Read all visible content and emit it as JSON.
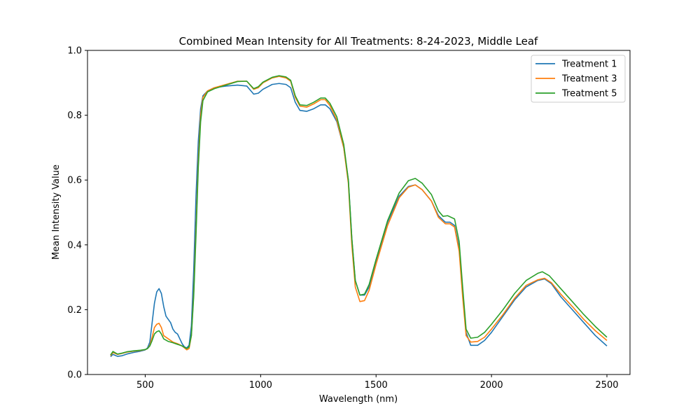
{
  "chart_data": {
    "type": "line",
    "title": "Combined Mean Intensity for All Treatments: 8-24-2023, Middle Leaf",
    "xlabel": "Wavelength (nm)",
    "ylabel": "Mean Intensity Value",
    "xlim": [
      250,
      2600
    ],
    "ylim": [
      0.0,
      1.0
    ],
    "xticks": [
      500,
      1000,
      1500,
      2000,
      2500
    ],
    "xtick_labels": [
      "500",
      "1000",
      "1500",
      "2000",
      "2500"
    ],
    "yticks": [
      0.0,
      0.2,
      0.4,
      0.6,
      0.8,
      1.0
    ],
    "ytick_labels": [
      "0.0",
      "0.2",
      "0.4",
      "0.6",
      "0.8",
      "1.0"
    ],
    "grid": false,
    "legend_position": "top-right",
    "series": [
      {
        "name": "Treatment 1",
        "color": "#1f77b4",
        "points": [
          [
            350,
            0.055
          ],
          [
            360,
            0.062
          ],
          [
            380,
            0.056
          ],
          [
            400,
            0.058
          ],
          [
            420,
            0.063
          ],
          [
            450,
            0.068
          ],
          [
            480,
            0.072
          ],
          [
            500,
            0.076
          ],
          [
            510,
            0.082
          ],
          [
            520,
            0.1
          ],
          [
            530,
            0.16
          ],
          [
            540,
            0.22
          ],
          [
            550,
            0.255
          ],
          [
            560,
            0.265
          ],
          [
            570,
            0.25
          ],
          [
            580,
            0.21
          ],
          [
            590,
            0.18
          ],
          [
            600,
            0.17
          ],
          [
            610,
            0.16
          ],
          [
            620,
            0.14
          ],
          [
            630,
            0.13
          ],
          [
            640,
            0.125
          ],
          [
            650,
            0.11
          ],
          [
            660,
            0.095
          ],
          [
            670,
            0.085
          ],
          [
            680,
            0.082
          ],
          [
            690,
            0.09
          ],
          [
            700,
            0.15
          ],
          [
            710,
            0.32
          ],
          [
            720,
            0.55
          ],
          [
            730,
            0.72
          ],
          [
            740,
            0.82
          ],
          [
            750,
            0.86
          ],
          [
            770,
            0.875
          ],
          [
            800,
            0.885
          ],
          [
            850,
            0.89
          ],
          [
            900,
            0.893
          ],
          [
            940,
            0.89
          ],
          [
            970,
            0.865
          ],
          [
            990,
            0.868
          ],
          [
            1010,
            0.88
          ],
          [
            1050,
            0.895
          ],
          [
            1080,
            0.898
          ],
          [
            1110,
            0.895
          ],
          [
            1130,
            0.885
          ],
          [
            1150,
            0.84
          ],
          [
            1170,
            0.815
          ],
          [
            1200,
            0.812
          ],
          [
            1230,
            0.82
          ],
          [
            1260,
            0.832
          ],
          [
            1280,
            0.832
          ],
          [
            1300,
            0.82
          ],
          [
            1330,
            0.78
          ],
          [
            1360,
            0.7
          ],
          [
            1380,
            0.6
          ],
          [
            1395,
            0.42
          ],
          [
            1410,
            0.29
          ],
          [
            1430,
            0.245
          ],
          [
            1450,
            0.245
          ],
          [
            1470,
            0.27
          ],
          [
            1500,
            0.35
          ],
          [
            1550,
            0.47
          ],
          [
            1600,
            0.55
          ],
          [
            1640,
            0.58
          ],
          [
            1670,
            0.585
          ],
          [
            1700,
            0.57
          ],
          [
            1740,
            0.535
          ],
          [
            1770,
            0.49
          ],
          [
            1800,
            0.47
          ],
          [
            1820,
            0.47
          ],
          [
            1840,
            0.46
          ],
          [
            1860,
            0.39
          ],
          [
            1875,
            0.25
          ],
          [
            1890,
            0.13
          ],
          [
            1910,
            0.09
          ],
          [
            1940,
            0.09
          ],
          [
            1970,
            0.105
          ],
          [
            2000,
            0.13
          ],
          [
            2050,
            0.18
          ],
          [
            2100,
            0.23
          ],
          [
            2150,
            0.27
          ],
          [
            2200,
            0.29
          ],
          [
            2230,
            0.295
          ],
          [
            2260,
            0.28
          ],
          [
            2300,
            0.24
          ],
          [
            2350,
            0.2
          ],
          [
            2400,
            0.16
          ],
          [
            2450,
            0.12
          ],
          [
            2500,
            0.088
          ]
        ]
      },
      {
        "name": "Treatment 3",
        "color": "#ff7f0e",
        "points": [
          [
            350,
            0.058
          ],
          [
            360,
            0.068
          ],
          [
            380,
            0.062
          ],
          [
            400,
            0.065
          ],
          [
            420,
            0.069
          ],
          [
            450,
            0.072
          ],
          [
            480,
            0.074
          ],
          [
            500,
            0.077
          ],
          [
            510,
            0.08
          ],
          [
            520,
            0.09
          ],
          [
            530,
            0.115
          ],
          [
            540,
            0.145
          ],
          [
            550,
            0.155
          ],
          [
            560,
            0.158
          ],
          [
            570,
            0.145
          ],
          [
            580,
            0.12
          ],
          [
            600,
            0.11
          ],
          [
            620,
            0.1
          ],
          [
            640,
            0.095
          ],
          [
            660,
            0.088
          ],
          [
            680,
            0.076
          ],
          [
            690,
            0.08
          ],
          [
            700,
            0.12
          ],
          [
            710,
            0.25
          ],
          [
            720,
            0.45
          ],
          [
            730,
            0.66
          ],
          [
            740,
            0.8
          ],
          [
            750,
            0.855
          ],
          [
            770,
            0.875
          ],
          [
            800,
            0.885
          ],
          [
            850,
            0.895
          ],
          [
            900,
            0.905
          ],
          [
            940,
            0.905
          ],
          [
            970,
            0.88
          ],
          [
            990,
            0.885
          ],
          [
            1010,
            0.9
          ],
          [
            1050,
            0.915
          ],
          [
            1080,
            0.92
          ],
          [
            1110,
            0.915
          ],
          [
            1130,
            0.905
          ],
          [
            1150,
            0.855
          ],
          [
            1170,
            0.828
          ],
          [
            1200,
            0.825
          ],
          [
            1230,
            0.835
          ],
          [
            1260,
            0.848
          ],
          [
            1280,
            0.848
          ],
          [
            1300,
            0.83
          ],
          [
            1330,
            0.785
          ],
          [
            1360,
            0.7
          ],
          [
            1380,
            0.59
          ],
          [
            1395,
            0.4
          ],
          [
            1410,
            0.27
          ],
          [
            1430,
            0.225
          ],
          [
            1450,
            0.228
          ],
          [
            1470,
            0.26
          ],
          [
            1500,
            0.34
          ],
          [
            1550,
            0.46
          ],
          [
            1600,
            0.545
          ],
          [
            1640,
            0.578
          ],
          [
            1670,
            0.585
          ],
          [
            1700,
            0.57
          ],
          [
            1740,
            0.535
          ],
          [
            1770,
            0.485
          ],
          [
            1800,
            0.465
          ],
          [
            1820,
            0.465
          ],
          [
            1840,
            0.455
          ],
          [
            1860,
            0.38
          ],
          [
            1875,
            0.24
          ],
          [
            1890,
            0.12
          ],
          [
            1910,
            0.1
          ],
          [
            1940,
            0.102
          ],
          [
            1970,
            0.115
          ],
          [
            2000,
            0.14
          ],
          [
            2050,
            0.185
          ],
          [
            2100,
            0.235
          ],
          [
            2150,
            0.275
          ],
          [
            2200,
            0.292
          ],
          [
            2230,
            0.297
          ],
          [
            2260,
            0.283
          ],
          [
            2300,
            0.248
          ],
          [
            2350,
            0.21
          ],
          [
            2400,
            0.17
          ],
          [
            2450,
            0.135
          ],
          [
            2500,
            0.105
          ]
        ]
      },
      {
        "name": "Treatment 5",
        "color": "#2ca02c",
        "points": [
          [
            350,
            0.06
          ],
          [
            360,
            0.071
          ],
          [
            380,
            0.063
          ],
          [
            400,
            0.066
          ],
          [
            420,
            0.07
          ],
          [
            450,
            0.073
          ],
          [
            480,
            0.075
          ],
          [
            500,
            0.077
          ],
          [
            510,
            0.08
          ],
          [
            520,
            0.088
          ],
          [
            530,
            0.105
          ],
          [
            540,
            0.125
          ],
          [
            550,
            0.132
          ],
          [
            560,
            0.135
          ],
          [
            570,
            0.125
          ],
          [
            580,
            0.11
          ],
          [
            600,
            0.102
          ],
          [
            620,
            0.098
          ],
          [
            640,
            0.093
          ],
          [
            660,
            0.088
          ],
          [
            680,
            0.08
          ],
          [
            690,
            0.085
          ],
          [
            700,
            0.12
          ],
          [
            710,
            0.24
          ],
          [
            720,
            0.43
          ],
          [
            730,
            0.64
          ],
          [
            740,
            0.78
          ],
          [
            750,
            0.845
          ],
          [
            770,
            0.872
          ],
          [
            800,
            0.882
          ],
          [
            850,
            0.893
          ],
          [
            900,
            0.904
          ],
          [
            940,
            0.905
          ],
          [
            970,
            0.882
          ],
          [
            990,
            0.888
          ],
          [
            1010,
            0.902
          ],
          [
            1050,
            0.917
          ],
          [
            1080,
            0.922
          ],
          [
            1110,
            0.918
          ],
          [
            1130,
            0.908
          ],
          [
            1150,
            0.86
          ],
          [
            1170,
            0.832
          ],
          [
            1200,
            0.83
          ],
          [
            1230,
            0.84
          ],
          [
            1260,
            0.853
          ],
          [
            1280,
            0.853
          ],
          [
            1300,
            0.837
          ],
          [
            1330,
            0.795
          ],
          [
            1360,
            0.71
          ],
          [
            1380,
            0.6
          ],
          [
            1395,
            0.42
          ],
          [
            1410,
            0.29
          ],
          [
            1430,
            0.245
          ],
          [
            1450,
            0.248
          ],
          [
            1470,
            0.278
          ],
          [
            1500,
            0.355
          ],
          [
            1550,
            0.475
          ],
          [
            1600,
            0.56
          ],
          [
            1640,
            0.598
          ],
          [
            1670,
            0.605
          ],
          [
            1700,
            0.59
          ],
          [
            1740,
            0.555
          ],
          [
            1770,
            0.505
          ],
          [
            1790,
            0.488
          ],
          [
            1810,
            0.49
          ],
          [
            1840,
            0.48
          ],
          [
            1860,
            0.41
          ],
          [
            1875,
            0.27
          ],
          [
            1890,
            0.14
          ],
          [
            1910,
            0.112
          ],
          [
            1940,
            0.115
          ],
          [
            1970,
            0.13
          ],
          [
            2000,
            0.155
          ],
          [
            2050,
            0.2
          ],
          [
            2100,
            0.25
          ],
          [
            2150,
            0.29
          ],
          [
            2200,
            0.312
          ],
          [
            2220,
            0.317
          ],
          [
            2250,
            0.305
          ],
          [
            2300,
            0.265
          ],
          [
            2350,
            0.225
          ],
          [
            2400,
            0.185
          ],
          [
            2450,
            0.148
          ],
          [
            2500,
            0.115
          ]
        ]
      }
    ]
  }
}
